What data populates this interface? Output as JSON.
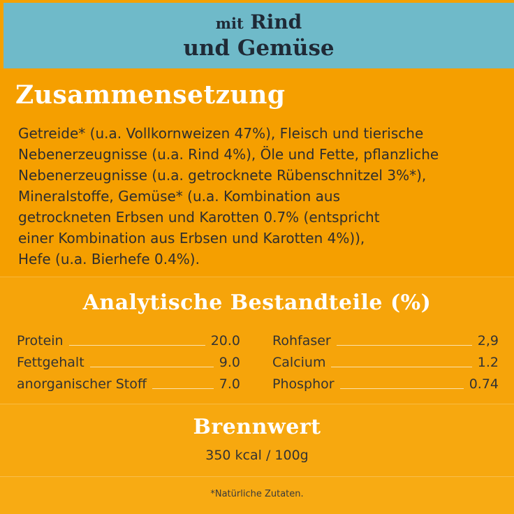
{
  "header": {
    "line1_prefix": "mit",
    "line1_main": "Rind",
    "line2": "und Gemüse",
    "background": "#6fbac9"
  },
  "composition": {
    "title": "Zusammensetzung",
    "lines": [
      "Getreide* (u.a. Vollkornweizen 47%), Fleisch und tierische",
      "Nebenerzeugnisse (u.a. Rind 4%), Öle und Fette, pflanzliche",
      "Nebenerzeugnisse (u.a. getrocknete Rübenschnitzel 3%*),",
      "Mineralstoffe, Gemüse* (u.a. Kombination aus",
      "getrockneten Erbsen und Karotten 0.7% (entspricht",
      "einer Kombination aus Erbsen und Karotten 4%)),",
      "Hefe (u.a. Bierhefe 0.4%)."
    ]
  },
  "analysis": {
    "title": "Analytische Bestandteile (%)",
    "rows": [
      {
        "left_label": "Protein",
        "left_value": "20.0",
        "right_label": "Rohfaser",
        "right_value": "2,9"
      },
      {
        "left_label": "Fettgehalt",
        "left_value": "9.0",
        "right_label": "Calcium",
        "right_value": "1.2"
      },
      {
        "left_label": "anorganischer Stoff",
        "left_value": "7.0",
        "right_label": "Phosphor",
        "right_value": "0.74"
      }
    ]
  },
  "energy": {
    "title": "Brennwert",
    "value": "350 kcal / 100g"
  },
  "footnote": "*Natürliche Zutaten.",
  "colors": {
    "orange": "#f59f00",
    "teal": "#6fbac9",
    "title_dark": "#1f2a36",
    "title_white": "#ffffff"
  }
}
